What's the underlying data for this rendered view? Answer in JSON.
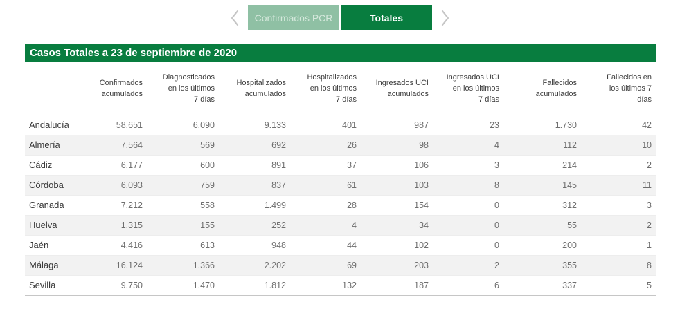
{
  "nav": {
    "tabs": [
      {
        "label": "Confirmados PCR",
        "active": false
      },
      {
        "label": "Totales",
        "active": true
      }
    ],
    "icons": {
      "chevron_left": "‹",
      "chevron_right": "›"
    }
  },
  "title_bar": "Casos Totales a 23 de septiembre de 2020",
  "table": {
    "columns": [
      "Confirmados\nacumulados",
      "Diagnosticados\nen los últimos\n7 días",
      "Hospitalizados\nacumulados",
      "Hospitalizados\nen los últimos\n7 días",
      "Ingresados UCI\nacumulados",
      "Ingresados UCI\nen los últimos\n7 días",
      "Fallecidos\nacumulados",
      "Fallecidos en\nlos últimos 7\ndías"
    ],
    "rows": [
      {
        "label": "Andalucía",
        "values": [
          "58.651",
          "6.090",
          "9.133",
          "401",
          "987",
          "23",
          "1.730",
          "42"
        ]
      },
      {
        "label": "Almería",
        "values": [
          "7.564",
          "569",
          "692",
          "26",
          "98",
          "4",
          "112",
          "10"
        ]
      },
      {
        "label": "Cádiz",
        "values": [
          "6.177",
          "600",
          "891",
          "37",
          "106",
          "3",
          "214",
          "2"
        ]
      },
      {
        "label": "Córdoba",
        "values": [
          "6.093",
          "759",
          "837",
          "61",
          "103",
          "8",
          "145",
          "11"
        ]
      },
      {
        "label": "Granada",
        "values": [
          "7.212",
          "558",
          "1.499",
          "28",
          "154",
          "0",
          "312",
          "3"
        ]
      },
      {
        "label": "Huelva",
        "values": [
          "1.315",
          "155",
          "252",
          "4",
          "34",
          "0",
          "55",
          "2"
        ]
      },
      {
        "label": "Jaén",
        "values": [
          "4.416",
          "613",
          "948",
          "44",
          "102",
          "0",
          "200",
          "1"
        ]
      },
      {
        "label": "Málaga",
        "values": [
          "16.124",
          "1.366",
          "2.202",
          "69",
          "203",
          "2",
          "355",
          "8"
        ]
      },
      {
        "label": "Sevilla",
        "values": [
          "9.750",
          "1.470",
          "1.812",
          "132",
          "187",
          "6",
          "337",
          "5"
        ]
      }
    ]
  },
  "colors": {
    "accent_green": "#087d3f",
    "inactive_tab_green": "#8fc0a4",
    "stripe_gray": "#f2f2f2",
    "chevron_gray": "#c6c6c6"
  }
}
